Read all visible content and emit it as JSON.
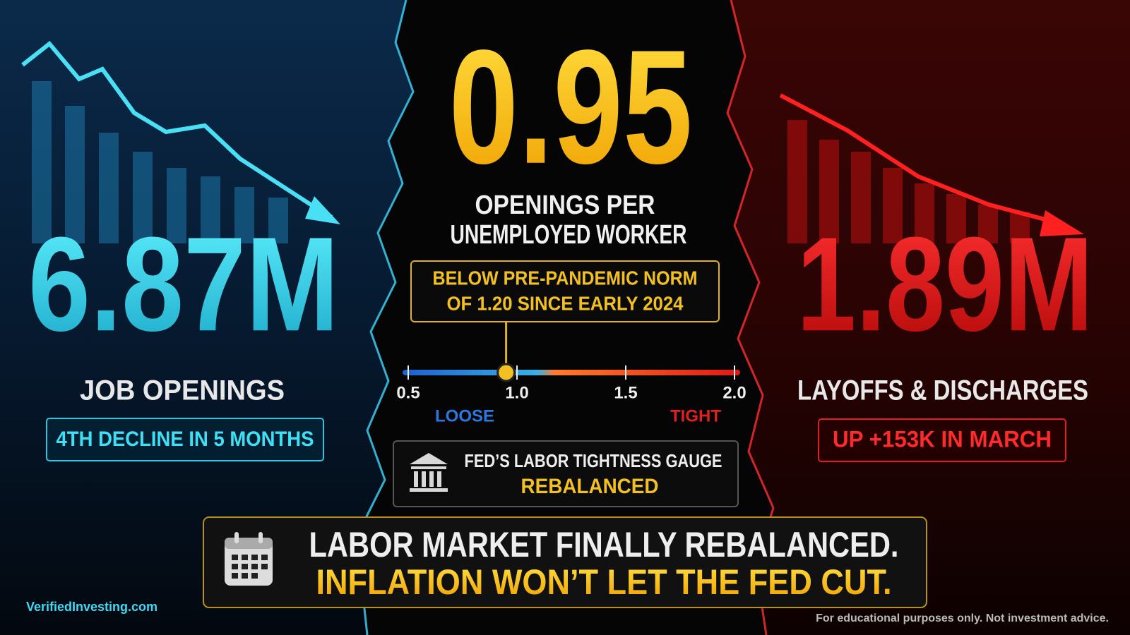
{
  "left": {
    "value": "6.87M",
    "label": "JOB OPENINGS",
    "note": "4TH DECLINE IN 5 MONTHS"
  },
  "center": {
    "value": 0.95,
    "label_lines": [
      "OPENINGS PER",
      "UNEMPLOYED WORKER"
    ],
    "callout_lines": [
      "BELOW PRE-PANDEMIC NORM",
      "OF 1.20 SINCE EARLY 2024"
    ],
    "gauge": {
      "ticks": [
        0.5,
        {
          "value": 1,
          "label": "1.0"
        },
        1.5,
        {
          "value": 2,
          "label": "2.0"
        }
      ],
      "low_label": "LOOSE",
      "high_label": "TIGHT"
    },
    "status": {
      "title": "FED’S LABOR TIGHTNESS GAUGE",
      "state": "REBALANCED"
    }
  },
  "right": {
    "value": "1.89M",
    "label": "LAYOFFS & DISCHARGES",
    "note": "UP +153K IN MARCH"
  },
  "banner": {
    "line1": "LABOR MARKET FINALLY REBALANCED.",
    "line2": "INFLATION WON’T LET THE FED CUT."
  },
  "footer": {
    "brand": "VerifiedInvesting.com",
    "disclaimer": "For educational purposes only. Not investment advice."
  }
}
